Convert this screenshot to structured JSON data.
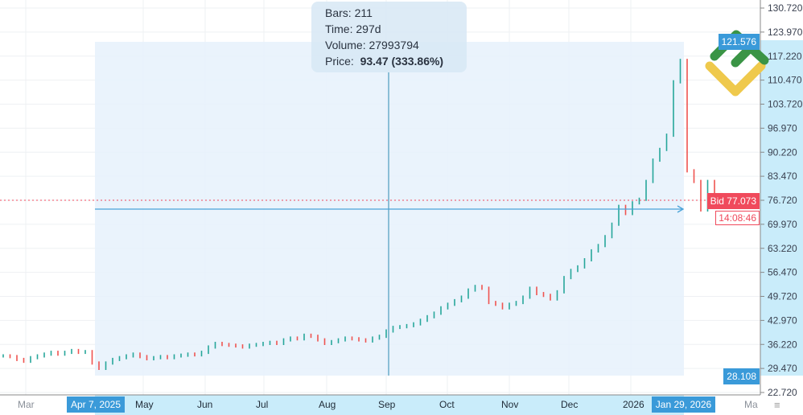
{
  "chart_data": {
    "type": "candlestick",
    "title": "",
    "y_ticks": [
      "130.720",
      "123.970",
      "117.220",
      "110.470",
      "103.720",
      "96.970",
      "90.220",
      "83.470",
      "76.720",
      "69.970",
      "63.220",
      "56.470",
      "49.720",
      "42.970",
      "36.220",
      "29.470",
      "22.720"
    ],
    "ylim": [
      22.72,
      130.72
    ],
    "x_ticks": [
      "Mar",
      "May",
      "Jun",
      "Jul",
      "Aug",
      "Sep",
      "Oct",
      "Nov",
      "Dec",
      "2026",
      "Ma"
    ],
    "closes": [
      33,
      32.8,
      32,
      31.5,
      32.5,
      33,
      33.5,
      34,
      33.5,
      34,
      34.5,
      34,
      34.2,
      31,
      29.5,
      31,
      32,
      32.5,
      33,
      33.5,
      32.8,
      32.2,
      32.5,
      32.8,
      32.5,
      33,
      33.2,
      33.5,
      33.3,
      34,
      35.5,
      36.5,
      36.2,
      36,
      35.8,
      35.5,
      36,
      36.2,
      36.5,
      36.8,
      36.5,
      37.5,
      38,
      37.8,
      38.8,
      38.5,
      37.5,
      36.5,
      37,
      37.5,
      38,
      37.8,
      37.5,
      37.2,
      38,
      38.5,
      40,
      41,
      41.2,
      41.5,
      42,
      43,
      44,
      45,
      46.5,
      47.5,
      48.5,
      49.5,
      51.5,
      52.5,
      52,
      48,
      47.5,
      46.5,
      47.5,
      48,
      49.5,
      52,
      50.5,
      50,
      49,
      51,
      55,
      57,
      58,
      60,
      62.5,
      64,
      66.5,
      70,
      75,
      73,
      76,
      77,
      82,
      88,
      91,
      95,
      110,
      116,
      85,
      82,
      74,
      82,
      77
    ],
    "grid": true,
    "colors": {
      "up": "#26a69a",
      "down": "#ef5350",
      "measure": "#2f8fd6",
      "bid": "#f04a5c"
    }
  },
  "measure": {
    "bars": "Bars: 211",
    "time": "Time: 297d",
    "volume": "Volume: 27993794",
    "price_label": "Price:",
    "price_value": "93.47 (333.86%)",
    "start_date": "Apr 7, 2025",
    "end_date": "Jan 29, 2026",
    "high_price": "121.576",
    "low_price": "28.108"
  },
  "bid": {
    "label": "Bid 77.073",
    "countdown": "14:08:46",
    "value": 77.073
  }
}
